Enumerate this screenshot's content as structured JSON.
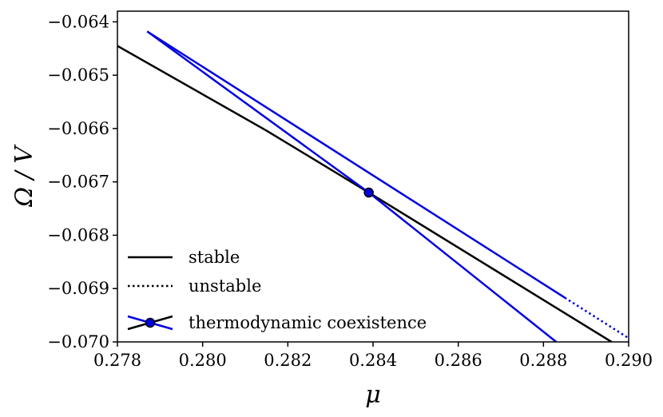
{
  "chart_data": {
    "type": "line",
    "title": "",
    "xlabel": "μ",
    "ylabel": "Ω / V",
    "xlim": [
      0.278,
      0.29
    ],
    "ylim": [
      -0.07,
      -0.0638
    ],
    "x_ticks": [
      0.278,
      0.28,
      0.282,
      0.284,
      0.286,
      0.288,
      0.29
    ],
    "x_tick_labels": [
      "0.278",
      "0.280",
      "0.282",
      "0.284",
      "0.286",
      "0.288",
      "0.290"
    ],
    "y_ticks": [
      -0.064,
      -0.065,
      -0.066,
      -0.067,
      -0.068,
      -0.069,
      -0.07
    ],
    "y_tick_labels": [
      "−0.064",
      "−0.065",
      "−0.066",
      "−0.067",
      "−0.068",
      "−0.069",
      "−0.070"
    ],
    "series": [
      {
        "name": "stable-black",
        "color": "#000000",
        "style": "solid",
        "points": [
          [
            0.278,
            -0.06445
          ],
          [
            0.2815,
            -0.06604
          ],
          [
            0.2839,
            -0.0672
          ],
          [
            0.2896,
            -0.07
          ]
        ]
      },
      {
        "name": "stable-blue-upper",
        "color": "#0000dd",
        "style": "solid",
        "points": [
          [
            0.2787,
            -0.06418
          ],
          [
            0.2885,
            -0.06917
          ]
        ]
      },
      {
        "name": "unstable-blue-upper",
        "color": "#0000dd",
        "style": "dotted",
        "points": [
          [
            0.2885,
            -0.06917
          ],
          [
            0.29,
            -0.06993
          ]
        ]
      },
      {
        "name": "stable-blue-lower",
        "color": "#0000dd",
        "style": "solid",
        "points": [
          [
            0.2787,
            -0.06418
          ],
          [
            0.2839,
            -0.0672
          ],
          [
            0.2883,
            -0.07
          ]
        ]
      }
    ],
    "coexistence_point": {
      "x": 0.2839,
      "y": -0.0672,
      "color": "#0000dd"
    },
    "legend": {
      "position": "lower-left",
      "entries": [
        "stable",
        "unstable",
        "thermodynamic coexistence"
      ]
    }
  }
}
